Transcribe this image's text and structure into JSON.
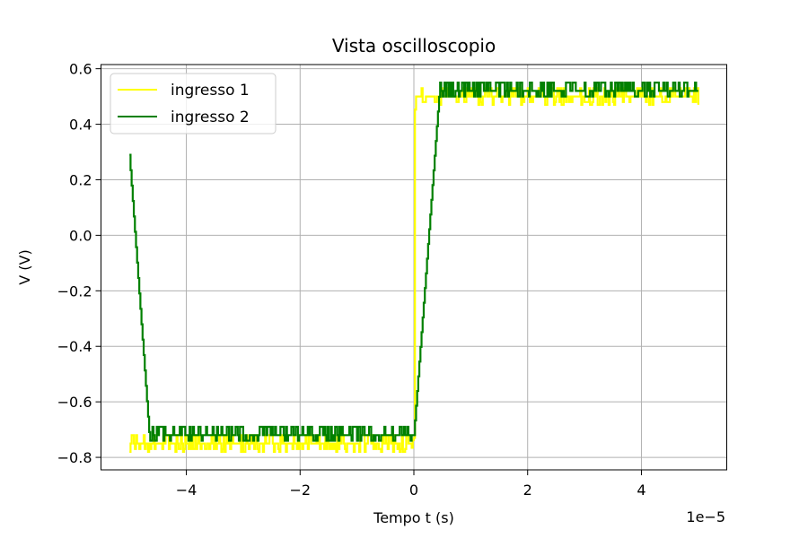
{
  "chart_data": {
    "type": "line",
    "title": "Vista oscilloscopio",
    "xlabel": "Tempo t (s)",
    "ylabel": "V (V)",
    "x_offset_label": "1e−5",
    "x_scale": 1e-05,
    "xlim": [
      -5.5e-05,
      5.5e-05
    ],
    "ylim": [
      -0.845,
      0.615
    ],
    "x_ticks": [
      -4,
      -2,
      0,
      2,
      4
    ],
    "x_tick_labels": [
      "−4",
      "−2",
      "0",
      "2",
      "4"
    ],
    "y_ticks": [
      -0.8,
      -0.6,
      -0.4,
      -0.2,
      0.0,
      0.2,
      0.4,
      0.6
    ],
    "y_tick_labels": [
      "−0.8",
      "−0.6",
      "−0.4",
      "−0.2",
      "0.0",
      "0.2",
      "0.4",
      "0.6"
    ],
    "grid": true,
    "legend_position": "top-left",
    "series": [
      {
        "name": "ingresso 1",
        "color": "#ffff00",
        "points": [
          [
            -5e-05,
            -0.75
          ],
          [
            -5e-07,
            -0.75
          ],
          [
            0.0,
            -0.73
          ],
          [
            2e-07,
            0.5
          ],
          [
            5e-05,
            0.5
          ]
        ],
        "noise": {
          "low": -0.02,
          "high": 0.03,
          "spike_down": -0.03
        }
      },
      {
        "name": "ingresso 2",
        "color": "#008000",
        "points": [
          [
            -5e-05,
            0.29
          ],
          [
            -4.65e-05,
            -0.72
          ],
          [
            0.0,
            -0.72
          ],
          [
            4.5e-06,
            0.52
          ],
          [
            5e-05,
            0.52
          ]
        ],
        "noise": {
          "low": -0.02,
          "high": 0.03
        }
      }
    ]
  }
}
